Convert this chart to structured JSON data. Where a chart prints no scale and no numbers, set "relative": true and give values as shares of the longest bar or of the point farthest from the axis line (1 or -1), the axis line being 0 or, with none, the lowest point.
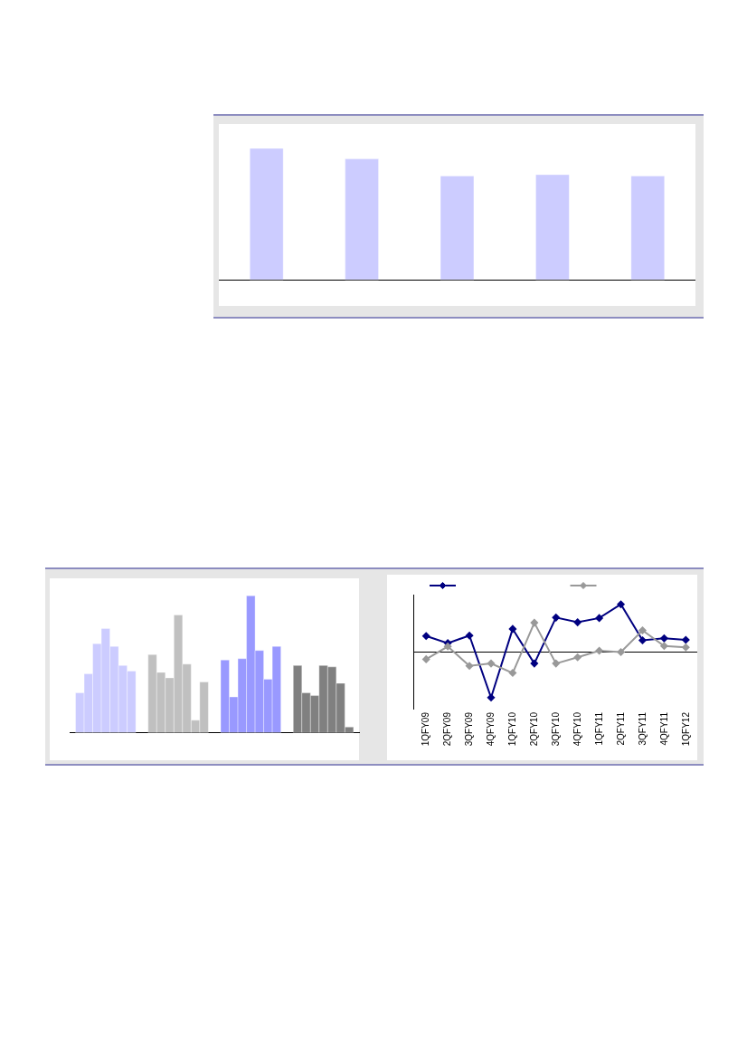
{
  "chart_data": [
    {
      "type": "bar",
      "categories": [
        null,
        null,
        null,
        null,
        null
      ],
      "values": [
        1,
        0.92,
        0.79,
        0.8,
        0.79
      ],
      "color": "#ccccff",
      "relative": true
    },
    {
      "type": "bar",
      "categories": [
        null,
        null,
        null,
        null
      ],
      "series": [
        {
          "colors": [
            "#ccccff",
            "#c0c0c0",
            "#9999ff",
            "#808080"
          ],
          "values": [
            0.29,
            0.57,
            0.53,
            0.49
          ]
        },
        {
          "colors": [
            "#ccccff",
            "#c0c0c0",
            "#9999ff",
            "#808080"
          ],
          "values": [
            0.43,
            0.44,
            0.26,
            0.29
          ]
        },
        {
          "colors": [
            "#ccccff",
            "#c0c0c0",
            "#9999ff",
            "#808080"
          ],
          "values": [
            0.65,
            0.4,
            0.54,
            0.27
          ]
        },
        {
          "colors": [
            "#ccccff",
            "#c0c0c0",
            "#9999ff",
            "#808080"
          ],
          "values": [
            0.76,
            0.86,
            1.0,
            0.49
          ]
        },
        {
          "colors": [
            "#ccccff",
            "#c0c0c0",
            "#9999ff",
            "#808080"
          ],
          "values": [
            0.63,
            0.5,
            0.6,
            0.48
          ]
        },
        {
          "colors": [
            "#ccccff",
            "#c0c0c0",
            "#9999ff",
            "#808080"
          ],
          "values": [
            0.49,
            0.09,
            0.39,
            0.36
          ]
        },
        {
          "colors": [
            "#ccccff",
            "#c0c0c0",
            "#9999ff",
            "#808080"
          ],
          "values": [
            0.45,
            0.37,
            0.63,
            0.04
          ]
        }
      ],
      "relative": true
    },
    {
      "type": "line",
      "categories": [
        "1QFY09",
        "2QFY09",
        "3QFY09",
        "4QFY09",
        "1QFY10",
        "2QFY10",
        "3QFY10",
        "4QFY10",
        "1QFY11",
        "2QFY11",
        "3QFY11",
        "4QFY11",
        "1QFY12"
      ],
      "series": [
        {
          "color": "#000080",
          "values": [
            0.33,
            0.18,
            0.34,
            -0.97,
            0.48,
            -0.25,
            0.72,
            0.62,
            0.71,
            1.0,
            0.24,
            0.28,
            0.25
          ]
        },
        {
          "color": "#999999",
          "values": [
            -0.16,
            0.11,
            -0.3,
            -0.25,
            -0.45,
            0.61,
            -0.25,
            -0.12,
            0.02,
            -0.01,
            0.45,
            0.12,
            0.09
          ]
        }
      ],
      "relative": true,
      "marker": "diamond",
      "line_style": "solid"
    }
  ]
}
